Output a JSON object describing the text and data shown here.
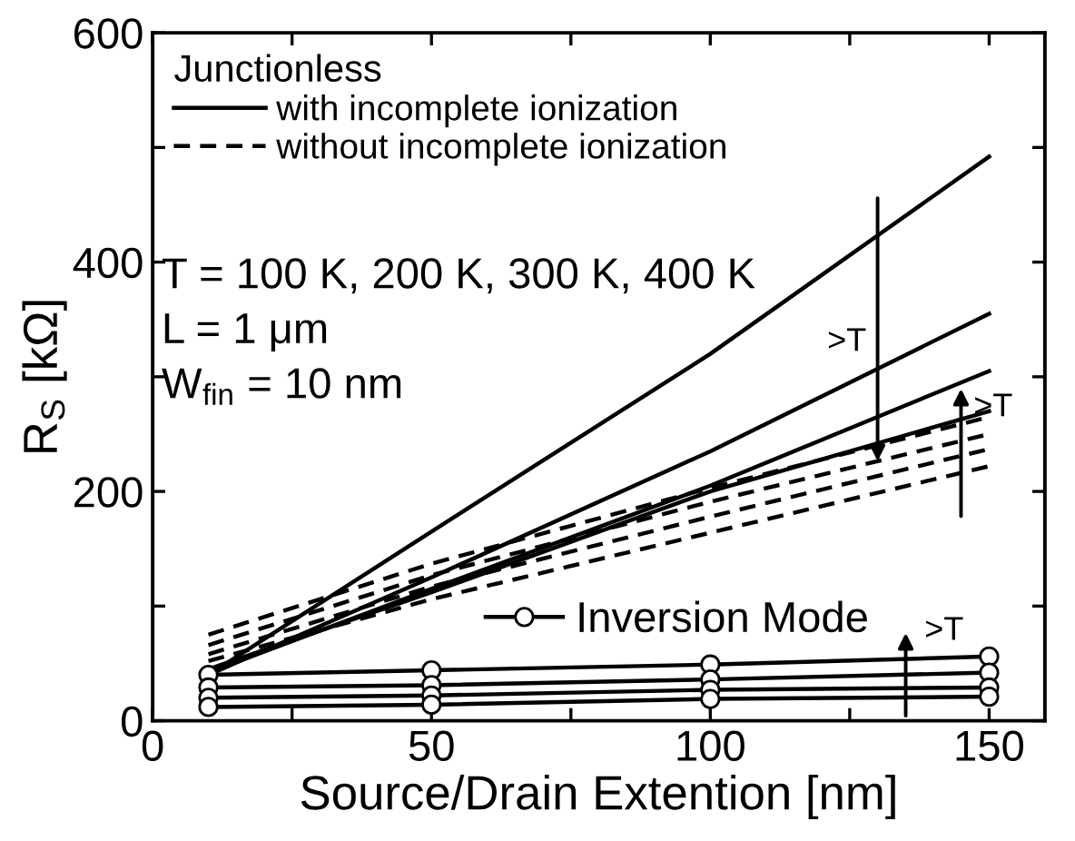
{
  "chart_data": {
    "type": "line",
    "xlabel": "Source/Drain Extention [nm]",
    "ylabel": "R$_{S}$ [kΩ]",
    "legend_title": "Junctionless",
    "legend": "top left",
    "x": [
      10,
      50,
      100,
      150
    ],
    "xlim": [
      0,
      160
    ],
    "ylim": [
      0,
      600
    ],
    "xticks": [
      0,
      {
        "value": 25,
        "label": null
      },
      50,
      {
        "value": 75,
        "label": null
      },
      100,
      {
        "value": 125,
        "label": null
      },
      150
    ],
    "yticks": [
      0,
      {
        "value": 100,
        "label": null
      },
      200,
      {
        "value": 300,
        "label": null
      },
      400,
      {
        "value": 500,
        "label": null
      },
      600
    ],
    "grid": false,
    "series": [
      {
        "name": "with incomplete ionization",
        "color": "#000000",
        "line_style": "solid",
        "marker": "none",
        "values": [
          40,
          165,
          320,
          492
        ]
      },
      {
        "color": "#000000",
        "line_style": "solid",
        "marker": "none",
        "values": [
          40,
          125,
          235,
          355
        ]
      },
      {
        "color": "#000000",
        "line_style": "solid",
        "marker": "none",
        "values": [
          42,
          115,
          205,
          305
        ]
      },
      {
        "color": "#000000",
        "line_style": "solid",
        "marker": "none",
        "values": [
          45,
          112,
          200,
          270
        ]
      },
      {
        "name": "without incomplete ionization",
        "color": "#000000",
        "line_style": "dashed",
        "marker": "none",
        "values": [
          75,
          137,
          203,
          265
        ]
      },
      {
        "color": "#000000",
        "line_style": "dashed",
        "marker": "none",
        "values": [
          66,
          127,
          191,
          250
        ]
      },
      {
        "color": "#000000",
        "line_style": "dashed",
        "marker": "none",
        "values": [
          58,
          117,
          178,
          237
        ]
      },
      {
        "color": "#000000",
        "line_style": "dashed",
        "marker": "none",
        "values": [
          52,
          106,
          164,
          222
        ]
      },
      {
        "name": "Inversion Mode",
        "color": "#000000",
        "line_style": "solid",
        "marker": "circle",
        "values": [
          40,
          44,
          49,
          56
        ]
      },
      {
        "color": "#000000",
        "line_style": "solid",
        "marker": "circle",
        "values": [
          29,
          31,
          36,
          42
        ]
      },
      {
        "color": "#000000",
        "line_style": "solid",
        "marker": "circle",
        "values": [
          20,
          22,
          27,
          29
        ]
      },
      {
        "color": "#000000",
        "line_style": "solid",
        "marker": "circle",
        "values": [
          12,
          14,
          19,
          21
        ]
      }
    ],
    "annotations": [
      "T = 100 K, 200 K, 300 K, 400 K",
      "L = 1 μm",
      "W$_{fin}$ = 10 nm",
      ">T",
      ">T",
      ">T"
    ]
  }
}
